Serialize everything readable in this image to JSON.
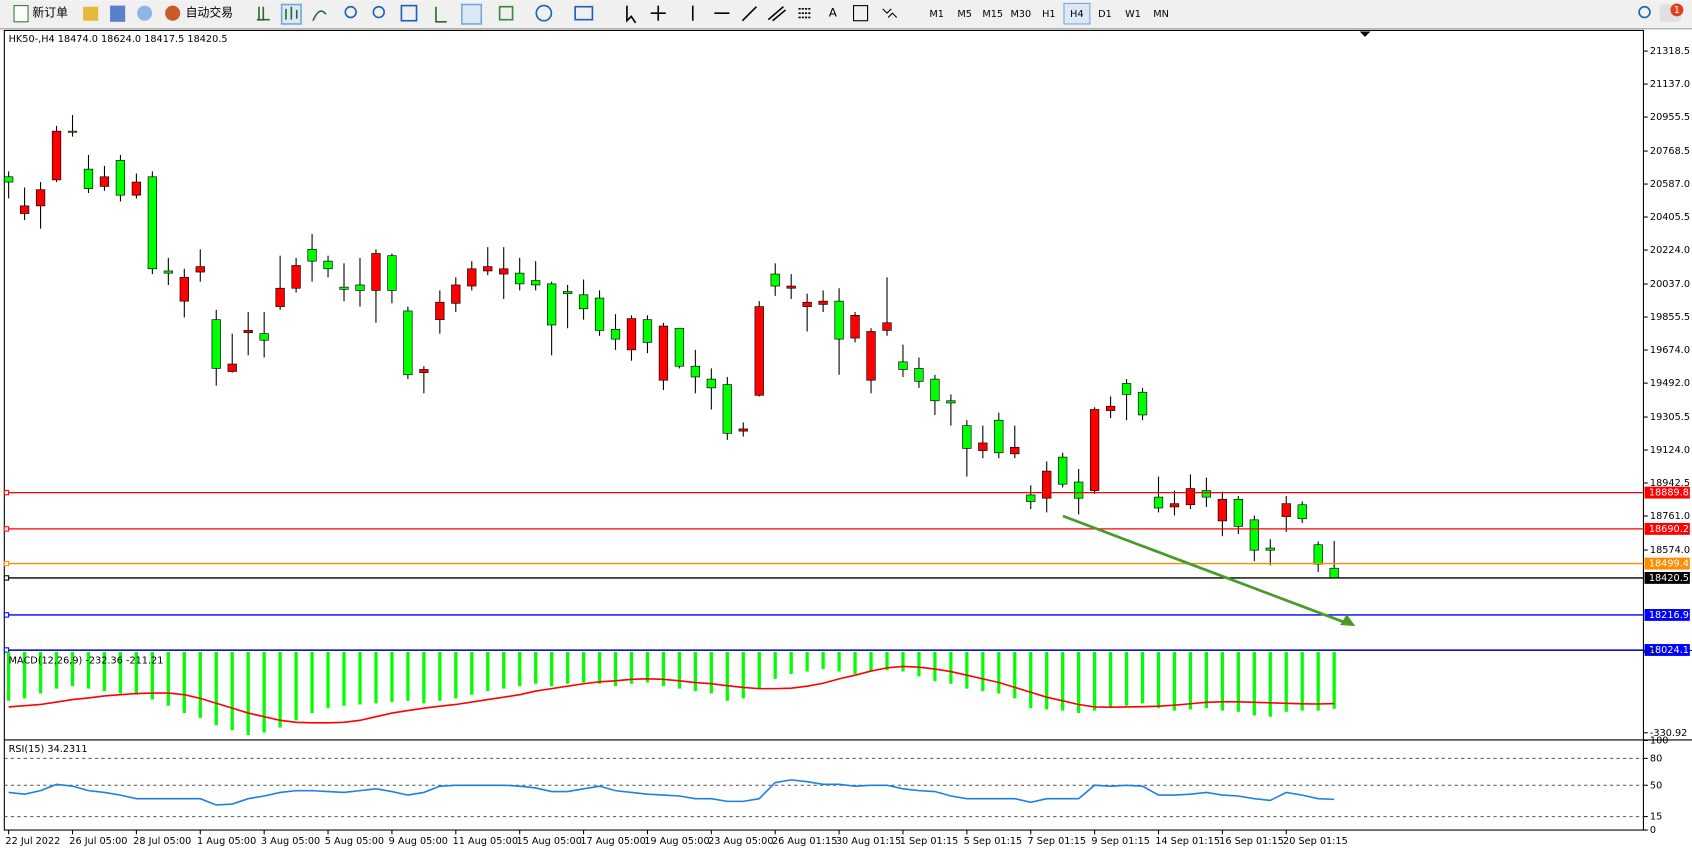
{
  "toolbar": {
    "new_order": "新订单",
    "auto_trading": "自动交易",
    "timeframes": [
      "M1",
      "M5",
      "M15",
      "M30",
      "H1",
      "H4",
      "D1",
      "W1",
      "MN"
    ],
    "active_timeframe": "H4",
    "notification_count": 1
  },
  "chart_data": [
    {
      "type": "candlestick",
      "title": "HK50-,H4  18474.0 18624.0 18417.5 18420.5",
      "categories": [
        "22 Jul 2022",
        null,
        null,
        null,
        "26 Jul 05:00",
        null,
        null,
        null,
        "28 Jul 05:00",
        null,
        null,
        null,
        "1 Aug 05:00",
        null,
        null,
        null,
        "3 Aug 05:00",
        null,
        null,
        null,
        "5 Aug 05:00",
        null,
        null,
        null,
        "9 Aug 05:00",
        null,
        null,
        null,
        "11 Aug 05:00",
        null,
        null,
        null,
        "15 Aug 05:00",
        null,
        null,
        null,
        "17 Aug 05:00",
        null,
        null,
        null,
        "19 Aug 05:00",
        null,
        null,
        null,
        "23 Aug 05:00",
        null,
        null,
        null,
        "26 Aug 01:15",
        null,
        null,
        null,
        "30 Aug 01:15",
        null,
        null,
        null,
        "1 Sep 01:15",
        null,
        null,
        null,
        "5 Sep 01:15",
        null,
        null,
        null,
        "7 Sep 01:15",
        null,
        null,
        null,
        "9 Sep 01:15",
        null,
        null,
        null,
        "14 Sep 01:15",
        null,
        null,
        null,
        "16 Sep 01:15",
        null,
        null,
        null,
        "20 Sep 01:15",
        null,
        null,
        null
      ],
      "open": [
        20627,
        20425,
        20467,
        20610,
        20878,
        20669,
        20574,
        20717,
        20526,
        20627,
        20109,
        19943,
        20103,
        19841,
        19556,
        19770,
        19764,
        19913,
        20014,
        20228,
        20163,
        20020,
        20032,
        20002,
        20193,
        19889,
        19550,
        19841,
        19931,
        20026,
        20109,
        20092,
        20097,
        20056,
        20038,
        19996,
        19978,
        19960,
        19788,
        19675,
        19841,
        19508,
        19794,
        19585,
        19514,
        19484,
        19228,
        19425,
        20092,
        20014,
        19913,
        19925,
        19943,
        19740,
        19508,
        19782,
        19609,
        19573,
        19514,
        19395,
        19258,
        19121,
        19288,
        19103,
        18877,
        18859,
        19085,
        18948,
        18901,
        19341,
        19490,
        19442,
        18865,
        18811,
        18823,
        18901,
        18734,
        18853,
        18740,
        18585,
        18758,
        18823,
        18603,
        18474
      ],
      "high": [
        20657,
        20568,
        20598,
        20907,
        20967,
        20747,
        20687,
        20747,
        20645,
        20657,
        20181,
        20121,
        20228,
        19895,
        19764,
        19883,
        19883,
        20193,
        20181,
        20312,
        20193,
        20151,
        20181,
        20228,
        20205,
        19913,
        19585,
        20002,
        20074,
        20163,
        20240,
        20240,
        20181,
        20163,
        20050,
        20032,
        20062,
        20002,
        19871,
        19865,
        19865,
        19824,
        19794,
        19675,
        19573,
        19526,
        19276,
        19943,
        20151,
        20092,
        19984,
        20002,
        20014,
        19883,
        19794,
        20074,
        19704,
        19633,
        19538,
        19430,
        19288,
        19258,
        19329,
        19258,
        18930,
        19061,
        19109,
        19020,
        19359,
        19419,
        19514,
        19466,
        18978,
        18901,
        18990,
        18972,
        18895,
        18871,
        18764,
        18633,
        18871,
        18841,
        18621,
        18624
      ],
      "low": [
        20508,
        20389,
        20342,
        20598,
        20848,
        20538,
        20550,
        20491,
        20508,
        20092,
        20032,
        19853,
        20050,
        19478,
        19550,
        19645,
        19633,
        19895,
        19990,
        20050,
        20074,
        19943,
        19913,
        19824,
        19931,
        19514,
        19436,
        19764,
        19883,
        20002,
        20086,
        19955,
        20002,
        20002,
        19645,
        19794,
        19841,
        19752,
        19675,
        19615,
        19657,
        19454,
        19573,
        19436,
        19347,
        19180,
        19198,
        19419,
        19972,
        19955,
        19776,
        19883,
        19538,
        19716,
        19436,
        19752,
        19526,
        19466,
        19317,
        19258,
        18978,
        19079,
        19079,
        19079,
        18799,
        18781,
        18918,
        18770,
        18883,
        19300,
        19288,
        19288,
        18781,
        18764,
        18799,
        18811,
        18650,
        18662,
        18513,
        18490,
        18674,
        18722,
        18454,
        18417.5
      ],
      "close": [
        20598,
        20467,
        20556,
        20878,
        20872,
        20562,
        20627,
        20526,
        20598,
        20121,
        20097,
        20074,
        20133,
        19573,
        19597,
        19782,
        19728,
        20014,
        20139,
        20163,
        20121,
        20008,
        20002,
        20205,
        20002,
        19538,
        19567,
        19937,
        20032,
        20121,
        20133,
        20121,
        20038,
        20032,
        19812,
        19984,
        19901,
        19782,
        19734,
        19847,
        19716,
        19806,
        19585,
        19526,
        19466,
        19216,
        19240,
        19913,
        20026,
        20026,
        19937,
        19943,
        19734,
        19865,
        19776,
        19824,
        19567,
        19502,
        19395,
        19383,
        19133,
        19163,
        19109,
        19139,
        18841,
        19008,
        18936,
        18859,
        19347,
        19365,
        19430,
        19317,
        18805,
        18829,
        18912,
        18865,
        18853,
        18704,
        18573,
        18573,
        18829,
        18746,
        18496,
        18420.5
      ],
      "up_color": "#ff0000",
      "down_color": "#00ff00",
      "ylim": [
        18025,
        21432
      ],
      "yticks": [
        21318.5,
        {
          "value": 21137.0,
          "label": "21137.0"
        },
        20955.5,
        20768.5,
        {
          "value": 20587.0,
          "label": "20587.0"
        },
        20405.5,
        {
          "value": 20224.0,
          "label": "20224.0"
        },
        {
          "value": 20037.0,
          "label": "20037.0"
        },
        19855.5,
        {
          "value": 19674.0,
          "label": "19674.0"
        },
        {
          "value": 19492.0,
          "label": "19492.0"
        },
        19305.5,
        {
          "value": 19124.0,
          "label": "19124.0"
        },
        18942.5,
        {
          "value": 18761.0,
          "label": "18761.0"
        },
        {
          "value": 18574.0,
          "label": "18574.0"
        }
      ],
      "levels": [
        {
          "value": 18889.8,
          "color": "#ff0000"
        },
        {
          "value": 18690.2,
          "color": "#ff0000"
        },
        {
          "value": 18499.4,
          "color": "#ff8c00"
        },
        {
          "value": 18420.5,
          "color": "#000000"
        },
        {
          "value": 18216.9,
          "color": "#0000ff"
        },
        {
          "value": 18024.1,
          "color": "#0000ff"
        }
      ]
    },
    {
      "type": "macd",
      "title": "MACD(12,26,9) -232.36 -211.21",
      "series": [
        {
          "name": "MACD",
          "color": "#00ff00",
          "values": [
            -200,
            -190,
            -170,
            -150,
            -140,
            -150,
            -160,
            -170,
            -175,
            -195,
            -220,
            -250,
            -270,
            -300,
            -320,
            -340,
            -330,
            -310,
            -280,
            -250,
            -230,
            -220,
            -215,
            -210,
            -205,
            -200,
            -210,
            -200,
            -190,
            -175,
            -160,
            -150,
            -140,
            -130,
            -140,
            -130,
            -125,
            -130,
            -140,
            -130,
            -125,
            -140,
            -150,
            -160,
            -170,
            -200,
            -190,
            -150,
            -110,
            -90,
            -80,
            -70,
            -80,
            -90,
            -80,
            -75,
            -80,
            -100,
            -120,
            -130,
            -150,
            -160,
            -170,
            -190,
            -230,
            -235,
            -240,
            -250,
            -240,
            -230,
            -220,
            -210,
            -230,
            -240,
            -235,
            -230,
            -240,
            -245,
            -260,
            -265,
            -245,
            -240,
            -240,
            -232.36
          ]
        },
        {
          "name": "Signal",
          "color": "#ff0000",
          "values": [
            -225,
            -220,
            -215,
            -205,
            -195,
            -188,
            -180,
            -175,
            -170,
            -168,
            -168,
            -175,
            -190,
            -210,
            -230,
            -250,
            -265,
            -280,
            -288,
            -290,
            -290,
            -288,
            -280,
            -265,
            -250,
            -240,
            -230,
            -222,
            -215,
            -205,
            -195,
            -185,
            -175,
            -160,
            -150,
            -140,
            -130,
            -122,
            -118,
            -112,
            -110,
            -112,
            -118,
            -125,
            -130,
            -138,
            -145,
            -150,
            -150,
            -148,
            -140,
            -128,
            -110,
            -95,
            -78,
            -65,
            -59,
            -62,
            -70,
            -80,
            -95,
            -110,
            -125,
            -145,
            -165,
            -185,
            -200,
            -215,
            -225,
            -226,
            -225,
            -224,
            -222,
            -218,
            -212,
            -206,
            -204,
            -204,
            -206,
            -208,
            -210,
            -212,
            -213,
            -211.21
          ]
        }
      ],
      "ylim": [
        -358,
        4.5
      ],
      "yticks": [
        0,
        -330.92
      ]
    },
    {
      "type": "line",
      "title": "RSI(15) 34.2311",
      "series": [
        {
          "name": "RSI",
          "color": "#1e7fe6",
          "values": [
            42,
            40,
            44,
            51,
            49,
            44,
            42,
            39,
            35,
            35,
            35,
            35,
            35,
            28,
            29,
            35,
            38,
            42,
            44,
            44,
            43,
            42,
            44,
            46,
            43,
            39,
            42,
            49,
            50,
            50,
            50,
            50,
            49,
            47,
            43,
            43,
            46,
            49,
            44,
            42,
            40,
            39,
            38,
            35,
            35,
            32,
            32,
            35,
            53,
            56,
            54,
            51,
            51,
            49,
            50,
            50,
            46,
            44,
            43,
            38,
            35,
            35,
            35,
            35,
            31,
            35,
            35,
            35,
            50,
            49,
            50,
            49,
            39,
            39,
            40,
            42,
            39,
            38,
            35,
            33,
            42,
            39,
            35,
            34.2311
          ]
        }
      ],
      "ylim": [
        0,
        100
      ],
      "yticks": [
        100,
        80,
        50,
        15,
        0
      ]
    }
  ]
}
